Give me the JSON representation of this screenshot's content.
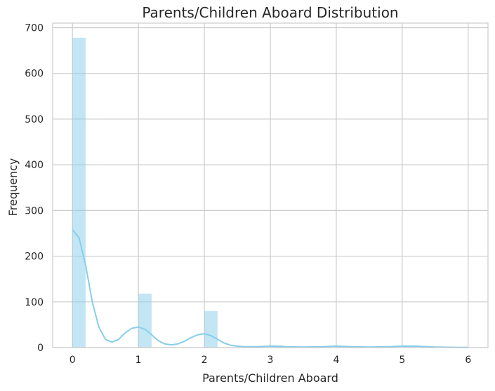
{
  "chart_data": {
    "type": "bar",
    "title": "Parents/Children Aboard Distribution",
    "xlabel": "Parents/Children Aboard",
    "ylabel": "Frequency",
    "xlim": [
      -0.3,
      6.3
    ],
    "ylim": [
      0,
      710
    ],
    "x_ticks": [
      "0",
      "1",
      "2",
      "3",
      "4",
      "5",
      "6"
    ],
    "y_ticks": [
      "0",
      "100",
      "200",
      "300",
      "400",
      "500",
      "600",
      "700"
    ],
    "grid": true,
    "bins": [
      {
        "x0": 0.0,
        "x1": 0.2,
        "value": 678
      },
      {
        "x0": 1.0,
        "x1": 1.2,
        "value": 118
      },
      {
        "x0": 2.0,
        "x1": 2.2,
        "value": 80
      },
      {
        "x0": 3.0,
        "x1": 3.2,
        "value": 5
      },
      {
        "x0": 4.0,
        "x1": 4.2,
        "value": 4
      },
      {
        "x0": 5.0,
        "x1": 5.2,
        "value": 5
      },
      {
        "x0": 5.8,
        "x1": 6.0,
        "value": 1
      }
    ],
    "kde": {
      "x": [
        0.0,
        0.1,
        0.2,
        0.3,
        0.4,
        0.5,
        0.6,
        0.7,
        0.8,
        0.9,
        1.0,
        1.1,
        1.2,
        1.3,
        1.4,
        1.5,
        1.6,
        1.7,
        1.8,
        1.9,
        2.0,
        2.1,
        2.2,
        2.3,
        2.4,
        2.5,
        2.6,
        2.8,
        3.0,
        3.2,
        3.5,
        3.8,
        4.0,
        4.2,
        4.5,
        4.8,
        5.0,
        5.2,
        5.5,
        5.8,
        6.0
      ],
      "y": [
        258,
        240,
        180,
        100,
        45,
        18,
        12,
        18,
        32,
        42,
        45,
        40,
        28,
        15,
        8,
        6,
        8,
        14,
        22,
        28,
        30,
        26,
        18,
        10,
        5,
        3,
        2,
        2,
        3,
        2,
        1,
        2,
        3,
        2,
        1,
        2,
        3,
        3,
        1,
        0.5,
        0.3
      ]
    },
    "colors": {
      "bar_fill": "#87ceeb",
      "bar_fill_opacity": 0.5,
      "kde_line": "#87ceeb",
      "grid": "#cccccc",
      "text": "#262626"
    }
  }
}
